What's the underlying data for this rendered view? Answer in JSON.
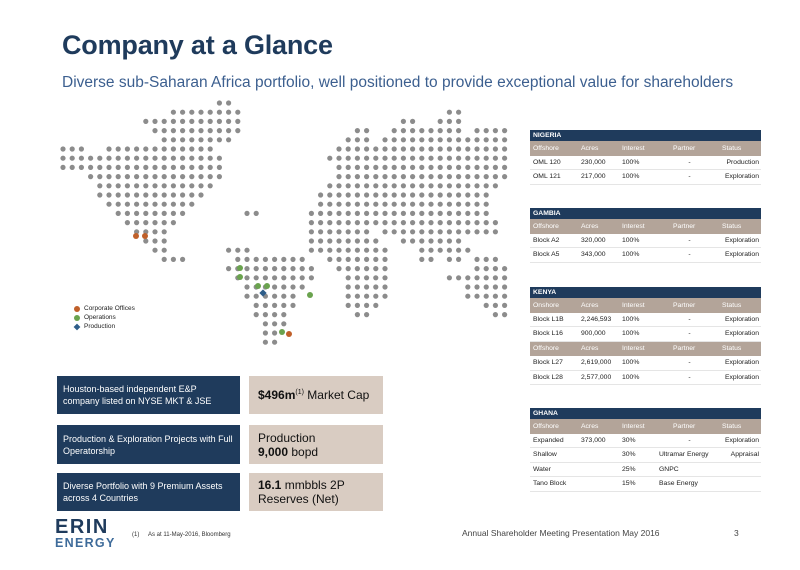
{
  "header": {
    "title": "Company at a Glance",
    "subtitle": "Diverse sub-Saharan Africa portfolio, well positioned to provide exceptional value for shareholders"
  },
  "map": {
    "dot_color": "#8c8c8c",
    "legend": [
      {
        "label": "Corporate Offices",
        "color": "#c0602a",
        "shape": "circle"
      },
      {
        "label": "Operations",
        "color": "#6aa34e",
        "shape": "circle"
      },
      {
        "label": "Production",
        "color": "#2e5e8a",
        "shape": "diamond"
      }
    ]
  },
  "highlights": [
    {
      "left": "Houston-based independent E&P company listed on NYSE MKT & JSE",
      "right_bold": "$496m",
      "right_sup": "(1)",
      "right_text": " Market Cap",
      "right_line2_bold": "",
      "right_line2": ""
    },
    {
      "left": "Production & Exploration Projects with Full Operatorship",
      "right_bold": "",
      "right_sup": "",
      "right_text": "Production",
      "right_line2_bold": "9,000",
      "right_line2": " bopd"
    },
    {
      "left": "Diverse Portfolio with 9 Premium Assets across 4 Countries",
      "right_bold": "16.1",
      "right_sup": "",
      "right_text": " mmbbls 2P",
      "right_line2_bold": "",
      "right_line2": "Reserves (Net)"
    }
  ],
  "tables": {
    "nigeria": {
      "title": "NIGERIA",
      "columns": [
        "Offshore",
        "Acres",
        "Interest",
        "Partner",
        "Status"
      ],
      "rows": [
        [
          "OML 120",
          "230,000",
          "100%",
          "-",
          "Production"
        ],
        [
          "OML 121",
          "217,000",
          "100%",
          "-",
          "Exploration"
        ]
      ]
    },
    "gambia": {
      "title": "GAMBIA",
      "columns": [
        "Offshore",
        "Acres",
        "Interest",
        "Partner",
        "Status"
      ],
      "rows": [
        [
          "Block A2",
          "320,000",
          "100%",
          "-",
          "Exploration"
        ],
        [
          "Block A5",
          "343,000",
          "100%",
          "-",
          "Exploration"
        ]
      ]
    },
    "kenya": {
      "title": "KENYA",
      "columns_onshore": [
        "Onshore",
        "Acres",
        "Interest",
        "Partner",
        "Status"
      ],
      "rows_onshore": [
        [
          "Block L1B",
          "2,246,593",
          "100%",
          "-",
          "Exploration"
        ],
        [
          "Block L16",
          "900,000",
          "100%",
          "-",
          "Exploration"
        ]
      ],
      "columns_offshore": [
        "Offshore",
        "Acres",
        "Interest",
        "Partner",
        "Status"
      ],
      "rows_offshore": [
        [
          "Block L27",
          "2,619,000",
          "100%",
          "-",
          "Exploration"
        ],
        [
          "Block L28",
          "2,577,000",
          "100%",
          "-",
          "Exploration"
        ]
      ]
    },
    "ghana": {
      "title": "GHANA",
      "columns": [
        "Offshore",
        "Acres",
        "Interest",
        "Partner",
        "Status"
      ],
      "rows": [
        [
          "Expanded",
          "373,000",
          "30%",
          "-",
          "Exploration"
        ],
        [
          "Shallow",
          "",
          "30%",
          "Ultramar Energy",
          "Appraisal"
        ],
        [
          "Water",
          "",
          "25%",
          "GNPC",
          ""
        ],
        [
          "Tano Block",
          "",
          "15%",
          "Base Energy",
          ""
        ]
      ]
    }
  },
  "footer": {
    "logo_top": "ERIN",
    "logo_bottom": "ENERGY",
    "footnote_num": "(1)",
    "footnote": "As at 11-May-2016, Bloomberg",
    "presentation": "Annual Shareholder Meeting Presentation  May 2016",
    "page": "3"
  }
}
